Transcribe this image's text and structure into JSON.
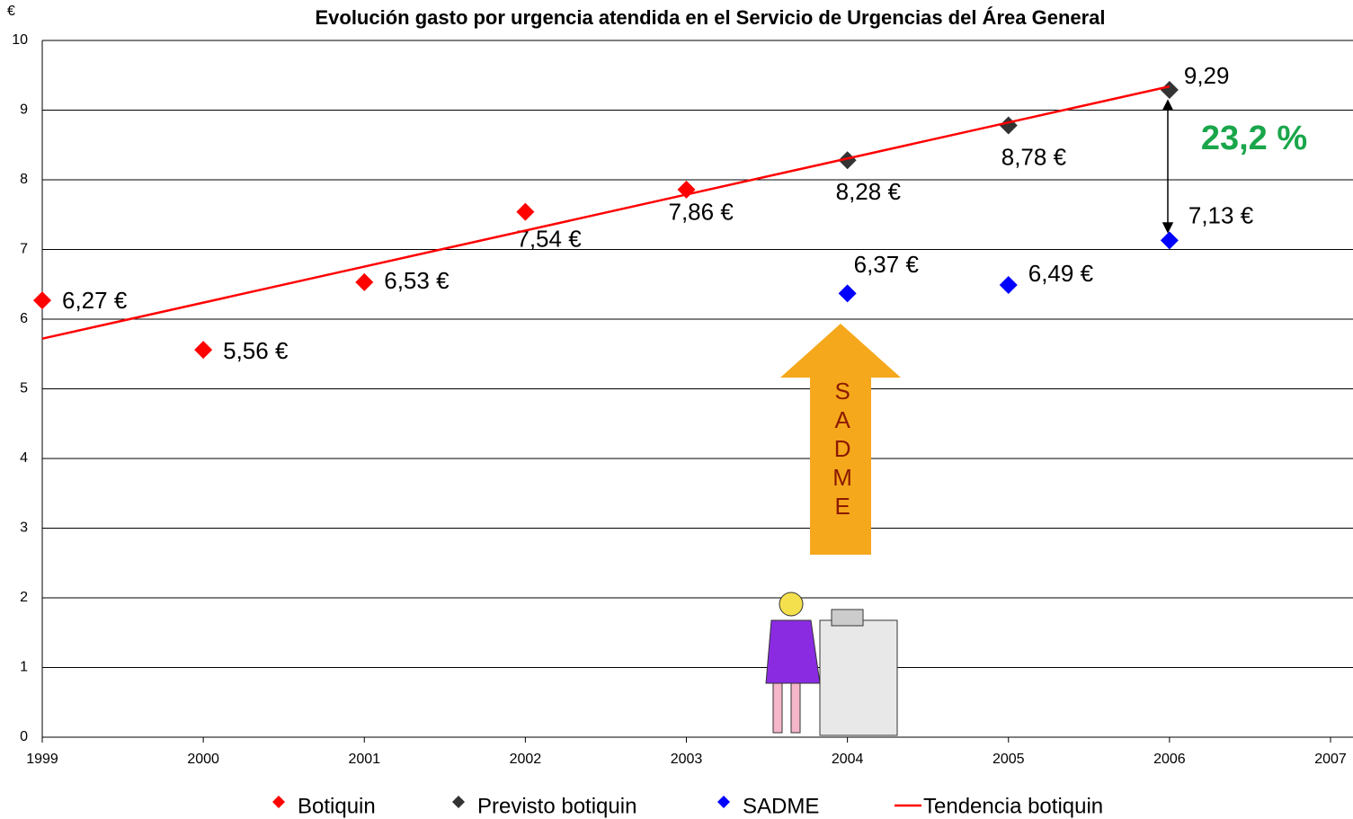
{
  "chart_data": {
    "type": "scatter",
    "title": "Evolución gasto por urgencia atendida en el Servicio de Urgencias del Área General",
    "y_label": "€",
    "xlim": [
      1999,
      2007
    ],
    "xticks": [
      1999,
      2000,
      2001,
      2002,
      2003,
      2004,
      2005,
      2006,
      2007
    ],
    "ylim": [
      0,
      10
    ],
    "yticks": [
      0,
      1,
      2,
      3,
      4,
      5,
      6,
      7,
      8,
      9,
      10
    ],
    "grid": true,
    "legend": "bottom",
    "series": [
      {
        "name": "Botiquin",
        "color": "#ff0000",
        "x": [
          1999,
          2000,
          2001,
          2002,
          2003
        ],
        "values": [
          6.27,
          5.56,
          6.53,
          7.54,
          7.86
        ],
        "value_labels": [
          "6,27 €",
          "5,56 €",
          "6,53 €",
          "7,54 €",
          "7,86 €"
        ]
      },
      {
        "name": "Previsto botiquin",
        "color": "#333333",
        "x": [
          2004,
          2005,
          2006
        ],
        "values": [
          8.28,
          8.78,
          9.29
        ],
        "value_labels": [
          "8,28 €",
          "8,78 €",
          "9,29"
        ]
      },
      {
        "name": "SADME",
        "color": "#0000ff",
        "x": [
          2004,
          2005,
          2006
        ],
        "values": [
          6.37,
          6.49,
          7.13
        ],
        "value_labels": [
          "6,37 €",
          "6,49 €",
          "7,13 €"
        ]
      },
      {
        "name": "Tendencia botiquin",
        "color": "#ff0000",
        "line": true,
        "x": [
          1999,
          2006
        ],
        "values": [
          5.72,
          9.34
        ]
      }
    ],
    "annotations": [
      "23,2 %",
      "SADME"
    ]
  }
}
